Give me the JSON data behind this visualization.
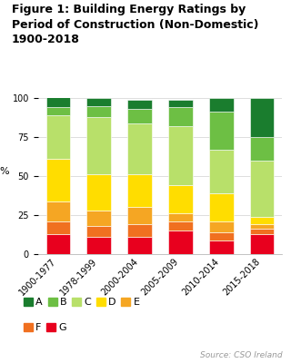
{
  "title": "Figure 1: Building Energy Ratings by\nPeriod of Construction (Non-Domestic)\n1900-2018",
  "categories": [
    "1900-1977",
    "1978-1999",
    "2000-2004",
    "2005-2009",
    "2010-2014",
    "2015-2018"
  ],
  "ratings": [
    "G",
    "F",
    "E",
    "D",
    "C",
    "B",
    "A"
  ],
  "colors": {
    "A": "#1a7d2e",
    "B": "#6dbf44",
    "C": "#b8e06a",
    "D": "#ffdd00",
    "E": "#f5a623",
    "F": "#f07020",
    "G": "#e8001e"
  },
  "data": {
    "G": [
      13,
      11,
      11,
      15,
      9,
      13
    ],
    "F": [
      8,
      7,
      8,
      6,
      5,
      3
    ],
    "E": [
      13,
      10,
      11,
      5,
      7,
      3
    ],
    "D": [
      27,
      23,
      21,
      18,
      18,
      5
    ],
    "C": [
      28,
      37,
      33,
      38,
      28,
      36
    ],
    "B": [
      5,
      7,
      9,
      12,
      24,
      15
    ],
    "A": [
      7,
      5,
      6,
      5,
      9,
      25
    ]
  },
  "ylabel": "%",
  "ylim": [
    0,
    100
  ],
  "yticks": [
    0,
    25,
    50,
    75,
    100
  ],
  "source": "Source: CSO Ireland",
  "background": "#ffffff",
  "title_fontsize": 9,
  "tick_fontsize": 7,
  "legend_fontsize": 8
}
